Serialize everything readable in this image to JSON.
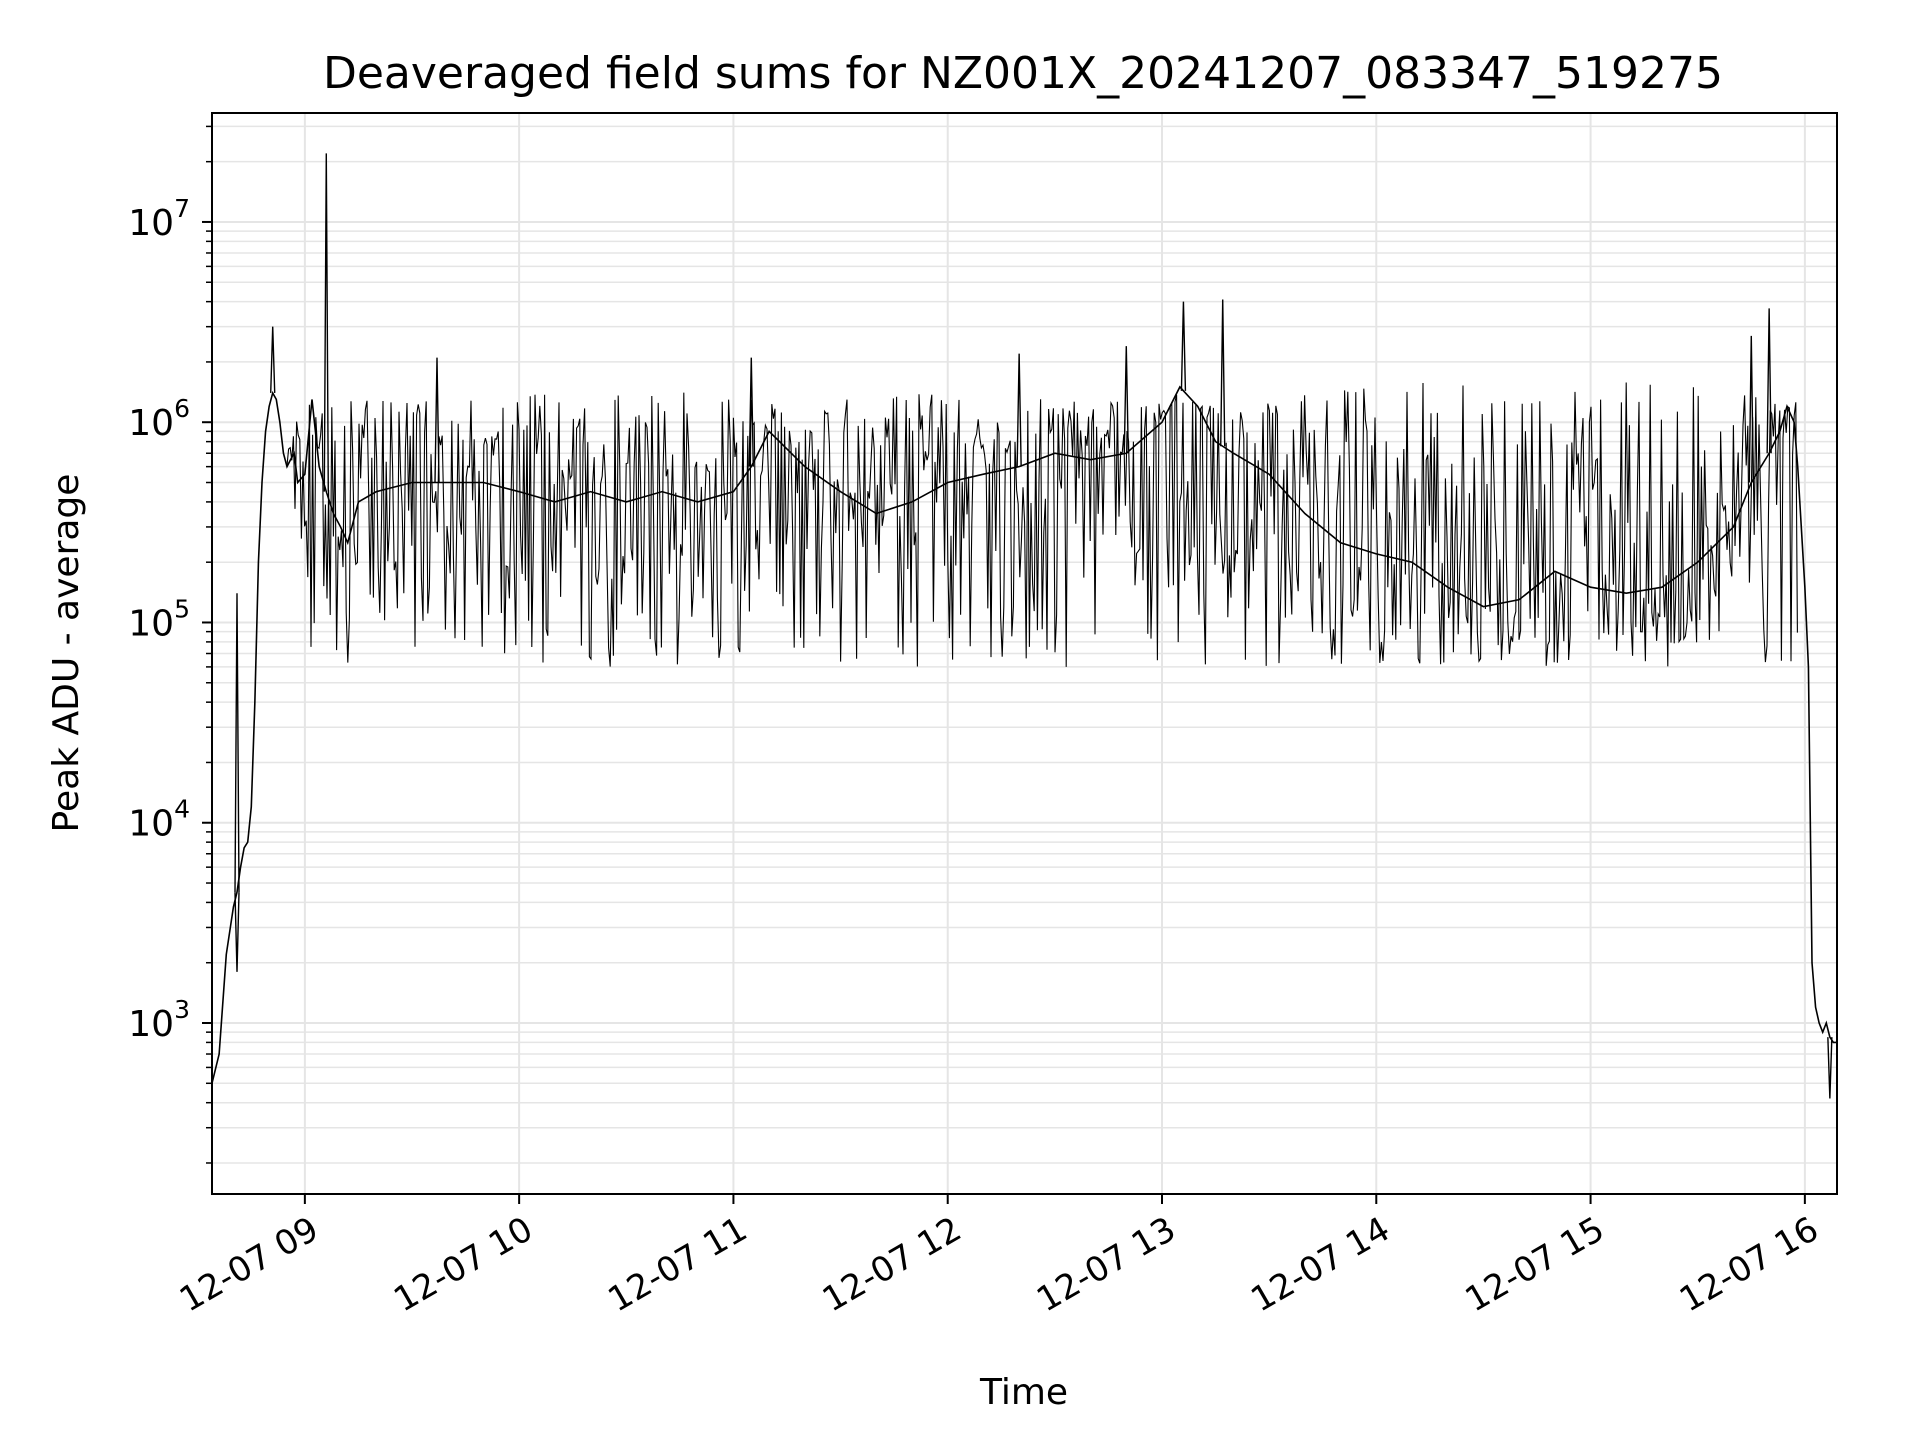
{
  "chart_data": {
    "type": "line",
    "title": "Deaveraged field sums for NZ001X_20241207_083347_519275",
    "xlabel": "Time",
    "ylabel": "Peak ADU - average",
    "yscale": "log",
    "ylim": [
      140,
      35000000
    ],
    "xlim": [
      "2024-12-07 08:34",
      "2024-12-07 16:09"
    ],
    "grid": true,
    "line_color": "#000000",
    "grid_color": "#e5e5e5",
    "x_ticks": [
      {
        "value": "2024-12-07 09:00",
        "label": "12-07 09"
      },
      {
        "value": "2024-12-07 10:00",
        "label": "12-07 10"
      },
      {
        "value": "2024-12-07 11:00",
        "label": "12-07 11"
      },
      {
        "value": "2024-12-07 12:00",
        "label": "12-07 12"
      },
      {
        "value": "2024-12-07 13:00",
        "label": "12-07 13"
      },
      {
        "value": "2024-12-07 14:00",
        "label": "12-07 14"
      },
      {
        "value": "2024-12-07 15:00",
        "label": "12-07 15"
      },
      {
        "value": "2024-12-07 16:00",
        "label": "12-07 16"
      }
    ],
    "y_ticks": [
      {
        "value": 1000,
        "base": "10",
        "exp": "3"
      },
      {
        "value": 10000,
        "base": "10",
        "exp": "4"
      },
      {
        "value": 100000,
        "base": "10",
        "exp": "5"
      },
      {
        "value": 1000000,
        "base": "10",
        "exp": "6"
      },
      {
        "value": 10000000,
        "base": "10",
        "exp": "7"
      }
    ],
    "series": [
      {
        "x": [
          "2024-12-07 08:34",
          "2024-12-07 08:36",
          "2024-12-07 08:38",
          "2024-12-07 08:40",
          "2024-12-07 08:41",
          "2024-12-07 08:42",
          "2024-12-07 08:43",
          "2024-12-07 08:44",
          "2024-12-07 08:45",
          "2024-12-07 08:46",
          "2024-12-07 08:47",
          "2024-12-07 08:48",
          "2024-12-07 08:49",
          "2024-12-07 08:50",
          "2024-12-07 08:51",
          "2024-12-07 08:52",
          "2024-12-07 08:53",
          "2024-12-07 08:54",
          "2024-12-07 08:55",
          "2024-12-07 08:56",
          "2024-12-07 08:57",
          "2024-12-07 08:58",
          "2024-12-07 09:00",
          "2024-12-07 09:02",
          "2024-12-07 09:04",
          "2024-12-07 09:06",
          "2024-12-07 09:08",
          "2024-12-07 09:10",
          "2024-12-07 09:12",
          "2024-12-07 09:15",
          "2024-12-07 09:20",
          "2024-12-07 09:30",
          "2024-12-07 09:40",
          "2024-12-07 09:50",
          "2024-12-07 10:00",
          "2024-12-07 10:10",
          "2024-12-07 10:20",
          "2024-12-07 10:30",
          "2024-12-07 10:40",
          "2024-12-07 10:50",
          "2024-12-07 11:00",
          "2024-12-07 11:05",
          "2024-12-07 11:10",
          "2024-12-07 11:20",
          "2024-12-07 11:30",
          "2024-12-07 11:40",
          "2024-12-07 11:50",
          "2024-12-07 12:00",
          "2024-12-07 12:10",
          "2024-12-07 12:20",
          "2024-12-07 12:30",
          "2024-12-07 12:40",
          "2024-12-07 12:50",
          "2024-12-07 13:00",
          "2024-12-07 13:05",
          "2024-12-07 13:10",
          "2024-12-07 13:15",
          "2024-12-07 13:20",
          "2024-12-07 13:30",
          "2024-12-07 13:40",
          "2024-12-07 13:50",
          "2024-12-07 14:00",
          "2024-12-07 14:10",
          "2024-12-07 14:20",
          "2024-12-07 14:30",
          "2024-12-07 14:40",
          "2024-12-07 14:50",
          "2024-12-07 15:00",
          "2024-12-07 15:10",
          "2024-12-07 15:20",
          "2024-12-07 15:30",
          "2024-12-07 15:40",
          "2024-12-07 15:45",
          "2024-12-07 15:50",
          "2024-12-07 15:53",
          "2024-12-07 15:55",
          "2024-12-07 15:57",
          "2024-12-07 15:58",
          "2024-12-07 15:59",
          "2024-12-07 16:00",
          "2024-12-07 16:01",
          "2024-12-07 16:02",
          "2024-12-07 16:03",
          "2024-12-07 16:04",
          "2024-12-07 16:05",
          "2024-12-07 16:06",
          "2024-12-07 16:07",
          "2024-12-07 16:08",
          "2024-12-07 16:09"
        ],
        "y": [
          500,
          700,
          2200,
          3800,
          4500,
          6000,
          7500,
          8000,
          12000,
          40000,
          200000,
          500000,
          900000,
          1200000,
          1400000,
          1300000,
          1000000,
          700000,
          600000,
          650000,
          700000,
          500000,
          550000,
          1300000,
          600000,
          450000,
          350000,
          300000,
          250000,
          400000,
          450000,
          500000,
          500000,
          500000,
          450000,
          400000,
          450000,
          400000,
          450000,
          400000,
          450000,
          600000,
          900000,
          600000,
          450000,
          350000,
          400000,
          500000,
          550000,
          600000,
          700000,
          650000,
          700000,
          1000000,
          1500000,
          1200000,
          800000,
          700000,
          550000,
          350000,
          250000,
          220000,
          200000,
          150000,
          120000,
          130000,
          180000,
          150000,
          140000,
          150000,
          200000,
          300000,
          500000,
          700000,
          900000,
          1200000,
          1000000,
          600000,
          300000,
          150000,
          60000,
          2000,
          1200,
          1000,
          900,
          1000,
          850,
          800,
          800
        ],
        "spikes": [
          {
            "x": "2024-12-07 08:41",
            "y": 140000
          },
          {
            "x": "2024-12-07 08:41",
            "y": 1800
          },
          {
            "x": "2024-12-07 08:51",
            "y": 3000000
          },
          {
            "x": "2024-12-07 09:06",
            "y": 22000000
          },
          {
            "x": "2024-12-07 09:37",
            "y": 2100000
          },
          {
            "x": "2024-12-07 11:05",
            "y": 2100000
          },
          {
            "x": "2024-12-07 12:20",
            "y": 2200000
          },
          {
            "x": "2024-12-07 12:50",
            "y": 2400000
          },
          {
            "x": "2024-12-07 13:06",
            "y": 4000000
          },
          {
            "x": "2024-12-07 13:17",
            "y": 4100000
          },
          {
            "x": "2024-12-07 15:45",
            "y": 2700000
          },
          {
            "x": "2024-12-07 15:50",
            "y": 3700000
          },
          {
            "x": "2024-12-07 16:07",
            "y": 420
          }
        ],
        "noise_band": {
          "start": "2024-12-07 08:55",
          "end": "2024-12-07 15:58",
          "low_typical": 60000,
          "high_typical": 1200000
        }
      }
    ]
  }
}
